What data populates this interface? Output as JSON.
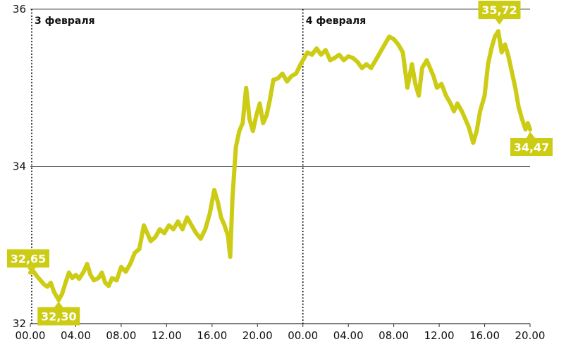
{
  "chart_data": {
    "type": "line",
    "x_ticks": [
      "00.00",
      "04.00",
      "08.00",
      "12.00",
      "16.00",
      "20.00",
      "00.00",
      "04.00",
      "08.00",
      "12.00",
      "16.00",
      "20.00"
    ],
    "y_ticks": [
      "32",
      "34",
      "36"
    ],
    "ylim": [
      32,
      36
    ],
    "xlim_hours": [
      0,
      44
    ],
    "day_labels": [
      {
        "text": "3 февраля",
        "hour": 0
      },
      {
        "text": "4 февраля",
        "hour": 24
      }
    ],
    "series_color": "#cccc14",
    "callouts": [
      {
        "text": "32,65",
        "hour": 0.0,
        "value": 32.65
      },
      {
        "text": "32,30",
        "hour": 2.5,
        "value": 32.3
      },
      {
        "text": "35,72",
        "hour": 17.3,
        "value": 35.72,
        "day_offset": 24
      },
      {
        "text": "34,47",
        "hour": 20.0,
        "value": 34.47,
        "day_offset": 24
      }
    ],
    "points": [
      [
        0.0,
        32.65
      ],
      [
        0.3,
        32.66
      ],
      [
        0.6,
        32.6
      ],
      [
        0.9,
        32.55
      ],
      [
        1.2,
        32.5
      ],
      [
        1.5,
        32.47
      ],
      [
        1.8,
        32.52
      ],
      [
        2.1,
        32.4
      ],
      [
        2.5,
        32.3
      ],
      [
        2.8,
        32.38
      ],
      [
        3.1,
        32.52
      ],
      [
        3.4,
        32.65
      ],
      [
        3.7,
        32.58
      ],
      [
        4.0,
        32.62
      ],
      [
        4.3,
        32.57
      ],
      [
        4.7,
        32.66
      ],
      [
        5.0,
        32.76
      ],
      [
        5.3,
        32.62
      ],
      [
        5.6,
        32.55
      ],
      [
        6.0,
        32.58
      ],
      [
        6.3,
        32.65
      ],
      [
        6.6,
        32.52
      ],
      [
        6.9,
        32.48
      ],
      [
        7.2,
        32.58
      ],
      [
        7.6,
        32.55
      ],
      [
        8.0,
        32.72
      ],
      [
        8.4,
        32.66
      ],
      [
        8.8,
        32.76
      ],
      [
        9.2,
        32.9
      ],
      [
        9.6,
        32.95
      ],
      [
        10.0,
        33.25
      ],
      [
        10.3,
        33.15
      ],
      [
        10.6,
        33.05
      ],
      [
        11.0,
        33.1
      ],
      [
        11.4,
        33.2
      ],
      [
        11.8,
        33.15
      ],
      [
        12.2,
        33.25
      ],
      [
        12.6,
        33.2
      ],
      [
        13.0,
        33.3
      ],
      [
        13.4,
        33.2
      ],
      [
        13.8,
        33.35
      ],
      [
        14.2,
        33.25
      ],
      [
        14.6,
        33.15
      ],
      [
        15.0,
        33.08
      ],
      [
        15.4,
        33.2
      ],
      [
        15.8,
        33.4
      ],
      [
        16.2,
        33.7
      ],
      [
        16.5,
        33.55
      ],
      [
        16.8,
        33.35
      ],
      [
        17.1,
        33.25
      ],
      [
        17.4,
        33.12
      ],
      [
        17.6,
        32.85
      ],
      [
        17.8,
        33.6
      ],
      [
        18.1,
        34.25
      ],
      [
        18.4,
        34.45
      ],
      [
        18.7,
        34.55
      ],
      [
        19.0,
        35.0
      ],
      [
        19.3,
        34.6
      ],
      [
        19.6,
        34.45
      ],
      [
        19.9,
        34.65
      ],
      [
        20.2,
        34.8
      ],
      [
        20.5,
        34.55
      ],
      [
        20.8,
        34.65
      ],
      [
        21.1,
        34.85
      ],
      [
        21.4,
        35.1
      ],
      [
        21.8,
        35.12
      ],
      [
        22.2,
        35.18
      ],
      [
        22.6,
        35.08
      ],
      [
        23.0,
        35.15
      ],
      [
        23.4,
        35.18
      ],
      [
        23.8,
        35.3
      ],
      [
        24.0,
        35.35
      ],
      [
        24.4,
        35.45
      ],
      [
        24.8,
        35.42
      ],
      [
        25.2,
        35.5
      ],
      [
        25.6,
        35.42
      ],
      [
        26.0,
        35.48
      ],
      [
        26.4,
        35.35
      ],
      [
        26.8,
        35.38
      ],
      [
        27.2,
        35.42
      ],
      [
        27.6,
        35.35
      ],
      [
        28.0,
        35.4
      ],
      [
        28.4,
        35.38
      ],
      [
        28.8,
        35.33
      ],
      [
        29.2,
        35.25
      ],
      [
        29.6,
        35.3
      ],
      [
        30.0,
        35.25
      ],
      [
        30.4,
        35.35
      ],
      [
        30.8,
        35.45
      ],
      [
        31.2,
        35.55
      ],
      [
        31.6,
        35.65
      ],
      [
        32.0,
        35.62
      ],
      [
        32.4,
        35.55
      ],
      [
        32.8,
        35.45
      ],
      [
        33.2,
        35.0
      ],
      [
        33.6,
        35.3
      ],
      [
        33.9,
        35.05
      ],
      [
        34.2,
        34.9
      ],
      [
        34.5,
        35.25
      ],
      [
        34.9,
        35.35
      ],
      [
        35.2,
        35.25
      ],
      [
        35.5,
        35.15
      ],
      [
        35.8,
        35.0
      ],
      [
        36.2,
        35.05
      ],
      [
        36.6,
        34.9
      ],
      [
        37.0,
        34.8
      ],
      [
        37.3,
        34.7
      ],
      [
        37.6,
        34.8
      ],
      [
        38.0,
        34.7
      ],
      [
        38.3,
        34.6
      ],
      [
        38.6,
        34.5
      ],
      [
        39.0,
        34.3
      ],
      [
        39.3,
        34.45
      ],
      [
        39.6,
        34.7
      ],
      [
        40.0,
        34.9
      ],
      [
        40.3,
        35.3
      ],
      [
        40.6,
        35.5
      ],
      [
        40.9,
        35.65
      ],
      [
        41.2,
        35.72
      ],
      [
        41.5,
        35.45
      ],
      [
        41.8,
        35.55
      ],
      [
        42.1,
        35.4
      ],
      [
        42.4,
        35.2
      ],
      [
        42.7,
        35.0
      ],
      [
        43.0,
        34.75
      ],
      [
        43.3,
        34.6
      ],
      [
        43.6,
        34.47
      ],
      [
        43.8,
        34.55
      ],
      [
        44.0,
        34.47
      ]
    ]
  }
}
